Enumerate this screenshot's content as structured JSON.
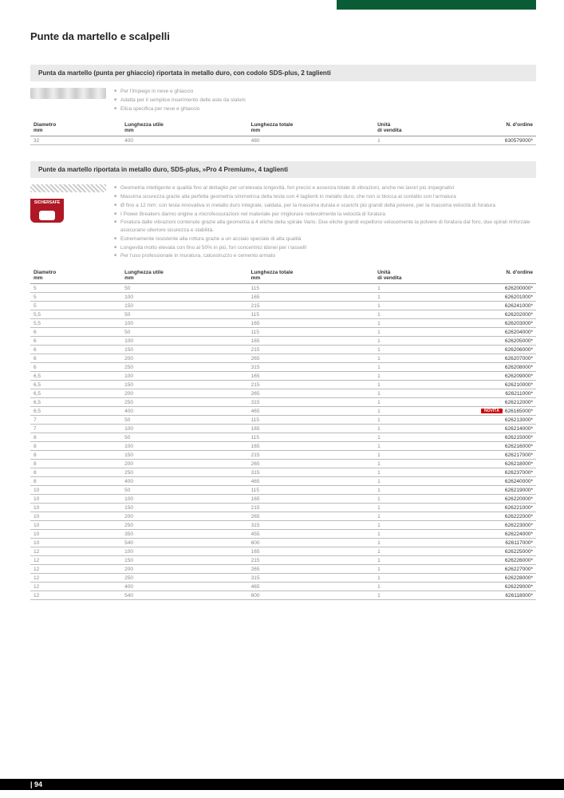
{
  "page_title": "Punte da martello e scalpelli",
  "page_number": "| 94",
  "section1": {
    "header": "Punta da martello (punta per ghiaccio) riportata in metallo duro, con codolo SDS-plus, 2 taglienti",
    "bullets": [
      "Per l'impiego in neve e ghiaccio",
      "Adatta per il semplice inserimento delle aste da slalom",
      "Elica specifica per neve e ghiaccio"
    ],
    "columns": {
      "dia": "Diametro\nmm",
      "lu": "Lunghezza utile\nmm",
      "lt": "Lunghezza totale\nmm",
      "uv": "Unità\ndi vendita",
      "ord": "N. d'ordine"
    },
    "rows": [
      {
        "dia": "32",
        "lu": "400",
        "lt": "480",
        "uv": "1",
        "ord": "630579000*"
      }
    ]
  },
  "section2": {
    "header": "Punte da martello riportata in metallo duro, SDS-plus, »Pro 4 Premium«, 4 taglienti",
    "badge": "SICHERSAFE",
    "bullets": [
      "Geometria intelligente e qualità fino al dettaglio per un'elevata longevità, fori precisi e assenza totale di vibrazioni, anche nei lavori più impegnativi",
      "Massima sicurezza grazie alla perfetta geometria simmetrica della testa con 4 taglienti in metallo duro, che non si blocca al contatto con l'armatura",
      "Ø fino a 12 mm: con testa innovativa in metallo duro integrale, saldata, per la massima durata e scarichi più grandi della polvere, per la massima velocità di foratura",
      "I Power Breakers danno origine a microfessurazioni nel materiale per migliorare notevolmente la velocità di foratura",
      "Foratura dalle vibrazioni contenute grazie alla geometria a 4 eliche della spirale Vario. Due eliche grandi espellono velocemente la polvere di foratura dal foro, due spirali rinforzate assicurano ulteriore sicurezza e stabilità.",
      "Estremamente resistente alla rottura grazie a un acciaio speciale di alta qualità",
      "Longevità molto elevata con fino al 50% in più, fori concentrici idonei per i tasselli",
      "Per l'uso professionale in muratura, calcestruzzo e cemento armato"
    ],
    "columns": {
      "dia": "Diametro\nmm",
      "lu": "Lunghezza utile\nmm",
      "lt": "Lunghezza totale\nmm",
      "uv": "Unità\ndi vendita",
      "ord": "N. d'ordine"
    },
    "rows": [
      {
        "dia": "5",
        "lu": "50",
        "lt": "115",
        "uv": "1",
        "ord": "626200000*"
      },
      {
        "dia": "5",
        "lu": "100",
        "lt": "165",
        "uv": "1",
        "ord": "626201000*"
      },
      {
        "dia": "5",
        "lu": "150",
        "lt": "215",
        "uv": "1",
        "ord": "626241000*"
      },
      {
        "dia": "5,5",
        "lu": "50",
        "lt": "115",
        "uv": "1",
        "ord": "626202000*"
      },
      {
        "dia": "5,5",
        "lu": "100",
        "lt": "165",
        "uv": "1",
        "ord": "626203000*"
      },
      {
        "dia": "6",
        "lu": "50",
        "lt": "115",
        "uv": "1",
        "ord": "626204000*"
      },
      {
        "dia": "6",
        "lu": "100",
        "lt": "165",
        "uv": "1",
        "ord": "626205000*"
      },
      {
        "dia": "6",
        "lu": "150",
        "lt": "215",
        "uv": "1",
        "ord": "626206000*"
      },
      {
        "dia": "6",
        "lu": "200",
        "lt": "265",
        "uv": "1",
        "ord": "626207000*"
      },
      {
        "dia": "6",
        "lu": "250",
        "lt": "315",
        "uv": "1",
        "ord": "626208000*"
      },
      {
        "dia": "6,5",
        "lu": "100",
        "lt": "165",
        "uv": "1",
        "ord": "626209000*"
      },
      {
        "dia": "6,5",
        "lu": "150",
        "lt": "215",
        "uv": "1",
        "ord": "626210000*"
      },
      {
        "dia": "6,5",
        "lu": "200",
        "lt": "265",
        "uv": "1",
        "ord": "626211000*"
      },
      {
        "dia": "6,5",
        "lu": "250",
        "lt": "315",
        "uv": "1",
        "ord": "626212000*"
      },
      {
        "dia": "6,5",
        "lu": "400",
        "lt": "465",
        "uv": "1",
        "ord": "626165000*",
        "novita": true
      },
      {
        "dia": "7",
        "lu": "50",
        "lt": "115",
        "uv": "1",
        "ord": "626213000*"
      },
      {
        "dia": "7",
        "lu": "100",
        "lt": "165",
        "uv": "1",
        "ord": "626214000*"
      },
      {
        "dia": "8",
        "lu": "50",
        "lt": "115",
        "uv": "1",
        "ord": "626215000*"
      },
      {
        "dia": "8",
        "lu": "100",
        "lt": "165",
        "uv": "1",
        "ord": "626216000*"
      },
      {
        "dia": "8",
        "lu": "150",
        "lt": "215",
        "uv": "1",
        "ord": "626217000*"
      },
      {
        "dia": "8",
        "lu": "200",
        "lt": "265",
        "uv": "1",
        "ord": "626218000*"
      },
      {
        "dia": "8",
        "lu": "250",
        "lt": "315",
        "uv": "1",
        "ord": "626237000*"
      },
      {
        "dia": "8",
        "lu": "400",
        "lt": "465",
        "uv": "1",
        "ord": "626240000*"
      },
      {
        "dia": "10",
        "lu": "50",
        "lt": "115",
        "uv": "1",
        "ord": "626219000*"
      },
      {
        "dia": "10",
        "lu": "100",
        "lt": "165",
        "uv": "1",
        "ord": "626220000*"
      },
      {
        "dia": "10",
        "lu": "150",
        "lt": "215",
        "uv": "1",
        "ord": "626221000*"
      },
      {
        "dia": "10",
        "lu": "200",
        "lt": "265",
        "uv": "1",
        "ord": "626222000*"
      },
      {
        "dia": "10",
        "lu": "250",
        "lt": "315",
        "uv": "1",
        "ord": "626223000*"
      },
      {
        "dia": "10",
        "lu": "350",
        "lt": "455",
        "uv": "1",
        "ord": "626224000*"
      },
      {
        "dia": "10",
        "lu": "540",
        "lt": "600",
        "uv": "1",
        "ord": "626117000*"
      },
      {
        "dia": "12",
        "lu": "100",
        "lt": "165",
        "uv": "1",
        "ord": "626225000*"
      },
      {
        "dia": "12",
        "lu": "150",
        "lt": "215",
        "uv": "1",
        "ord": "626226000*"
      },
      {
        "dia": "12",
        "lu": "200",
        "lt": "265",
        "uv": "1",
        "ord": "626227000*"
      },
      {
        "dia": "12",
        "lu": "250",
        "lt": "315",
        "uv": "1",
        "ord": "626228000*"
      },
      {
        "dia": "12",
        "lu": "400",
        "lt": "465",
        "uv": "1",
        "ord": "626229000*"
      },
      {
        "dia": "12",
        "lu": "540",
        "lt": "600",
        "uv": "1",
        "ord": "626118000*"
      }
    ],
    "novita_label": "NOVITÀ"
  }
}
